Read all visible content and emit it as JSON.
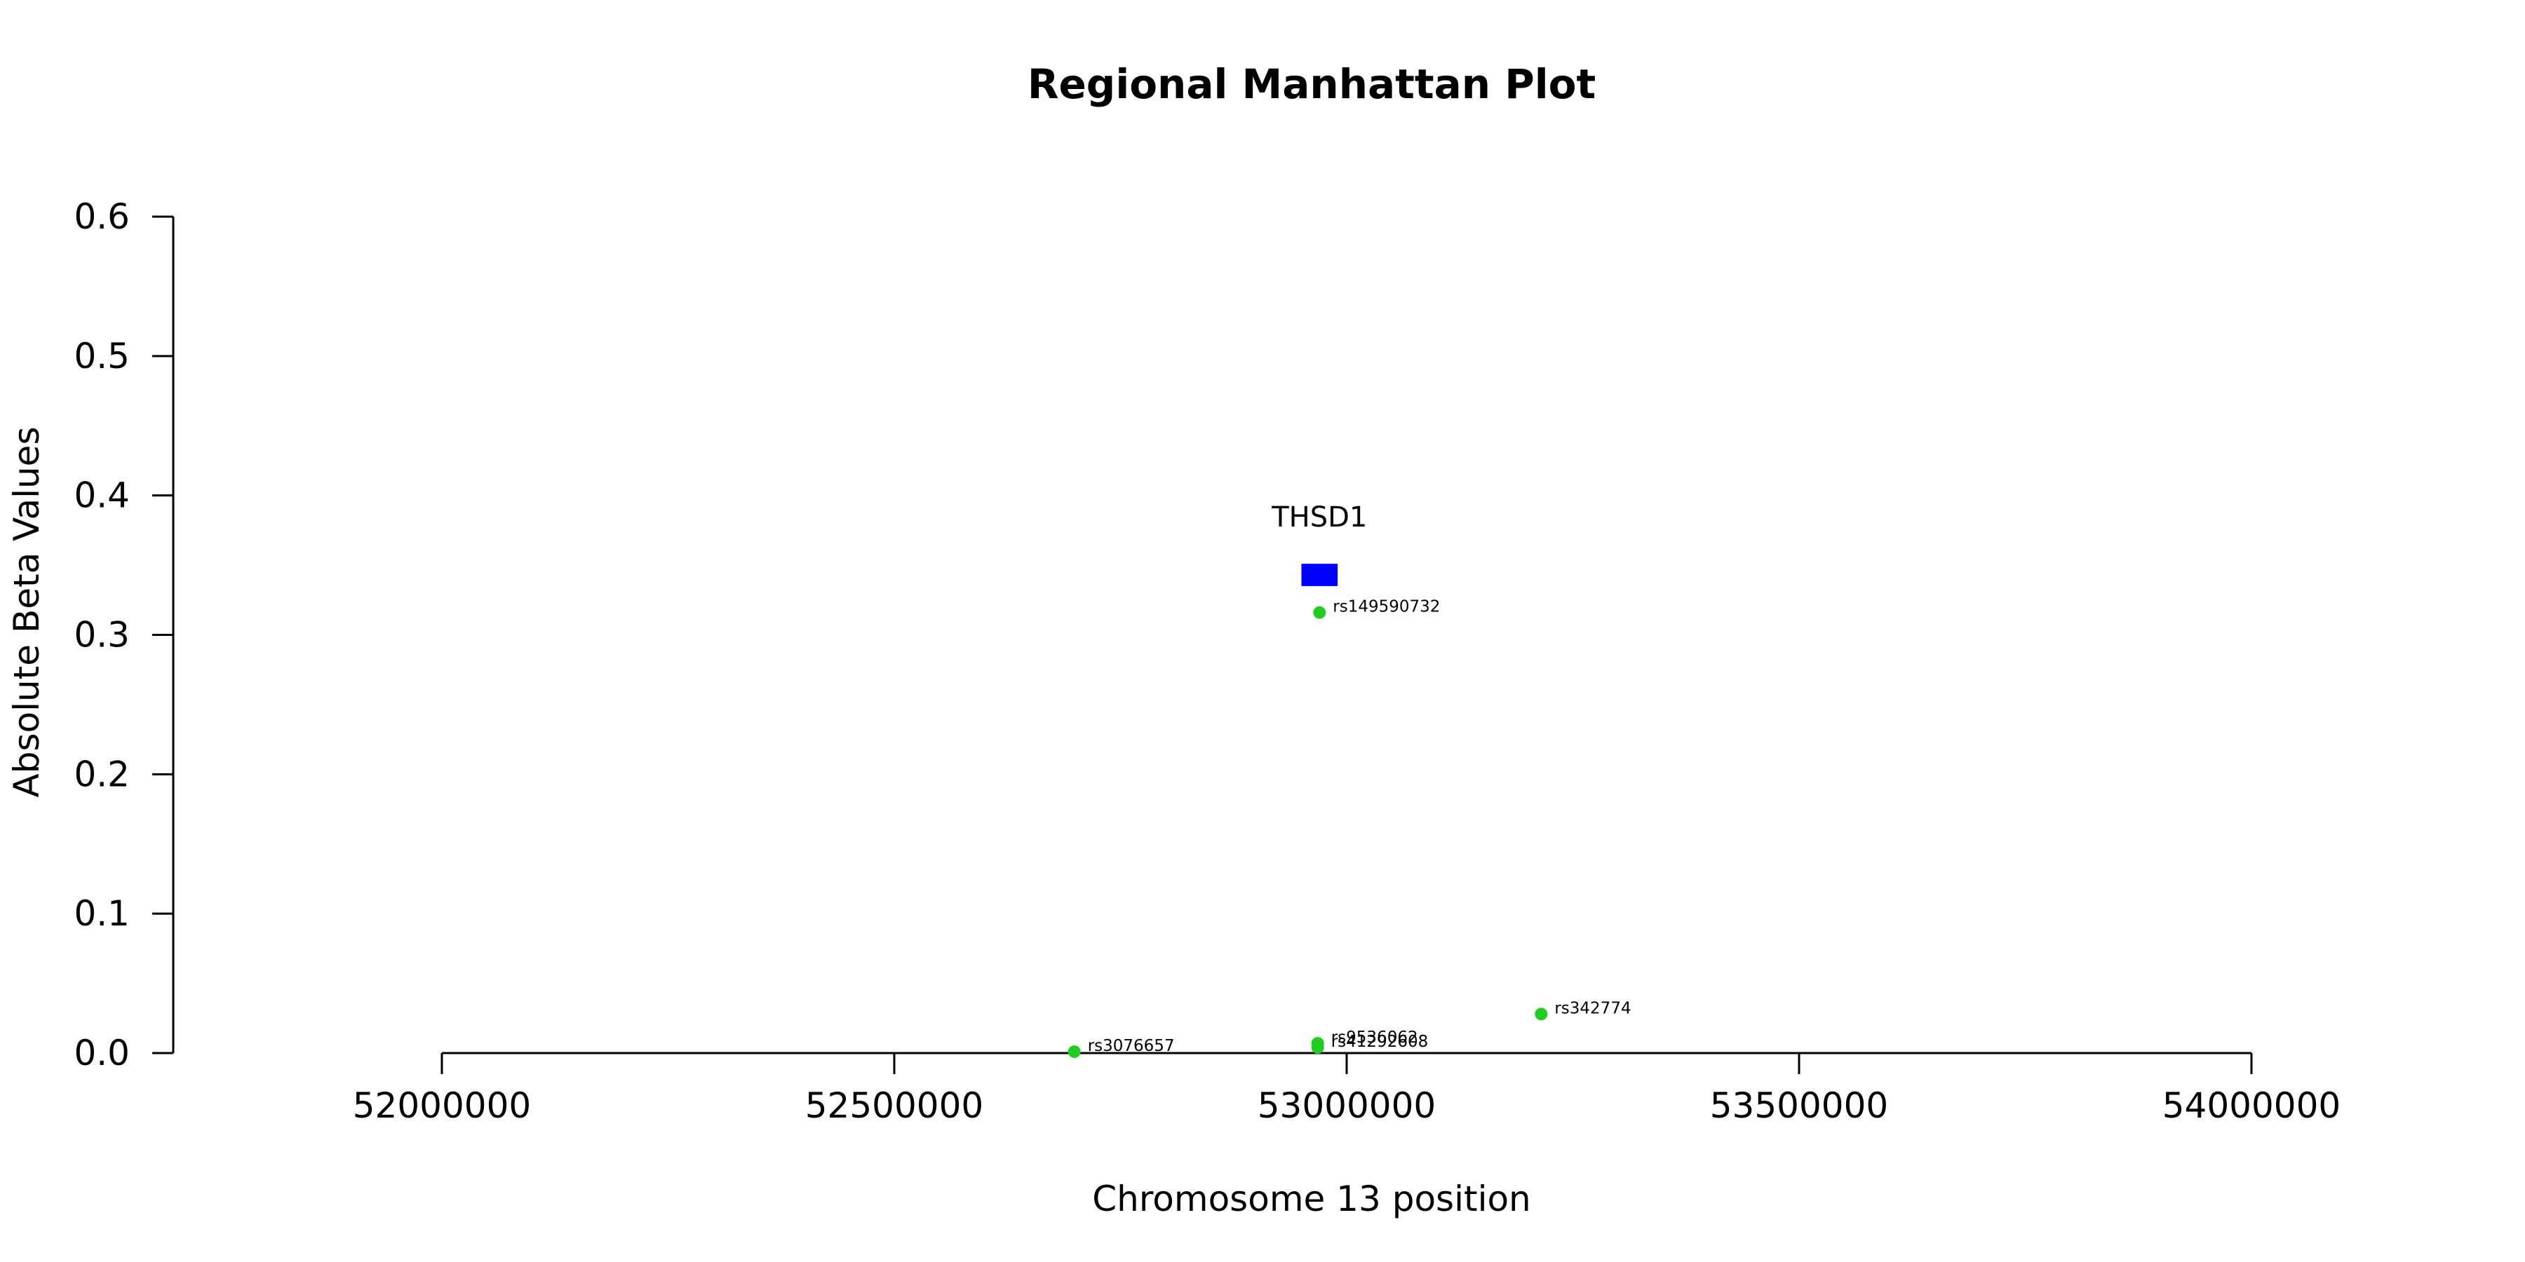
{
  "chart_data": {
    "type": "scatter",
    "title": "Regional Manhattan Plot",
    "xlabel": "Chromosome 13 position",
    "ylabel": "Absolute Beta Values",
    "xlim": [
      51700000,
      54300000
    ],
    "ylim": [
      0,
      0.6
    ],
    "x_ticks": [
      {
        "value": 52000000,
        "label": "52000000"
      },
      {
        "value": 52500000,
        "label": "52500000"
      },
      {
        "value": 53000000,
        "label": "53000000"
      },
      {
        "value": 53500000,
        "label": "53500000"
      },
      {
        "value": 54000000,
        "label": "54000000"
      }
    ],
    "y_ticks": [
      {
        "value": 0.0,
        "label": "0.0"
      },
      {
        "value": 0.1,
        "label": "0.1"
      },
      {
        "value": 0.2,
        "label": "0.2"
      },
      {
        "value": 0.3,
        "label": "0.3"
      },
      {
        "value": 0.4,
        "label": "0.4"
      },
      {
        "value": 0.5,
        "label": "0.5"
      },
      {
        "value": 0.6,
        "label": "0.6"
      }
    ],
    "point_color": "#22cc22",
    "points": [
      {
        "x": 52970000,
        "y": 0.316,
        "label": "rs149590732"
      },
      {
        "x": 53215000,
        "y": 0.028,
        "label": "rs342774"
      },
      {
        "x": 52968000,
        "y": 0.007,
        "label": "rs9536062"
      },
      {
        "x": 52968000,
        "y": 0.004,
        "label": "rs41292608"
      },
      {
        "x": 52699000,
        "y": 0.001,
        "label": "rs3076657"
      }
    ],
    "gene": {
      "name": "THSD1",
      "x_start": 52950000,
      "x_end": 52990000,
      "y_low": 0.335,
      "y_high": 0.351,
      "color": "#0000ff"
    },
    "grid": false,
    "legend": "none"
  }
}
